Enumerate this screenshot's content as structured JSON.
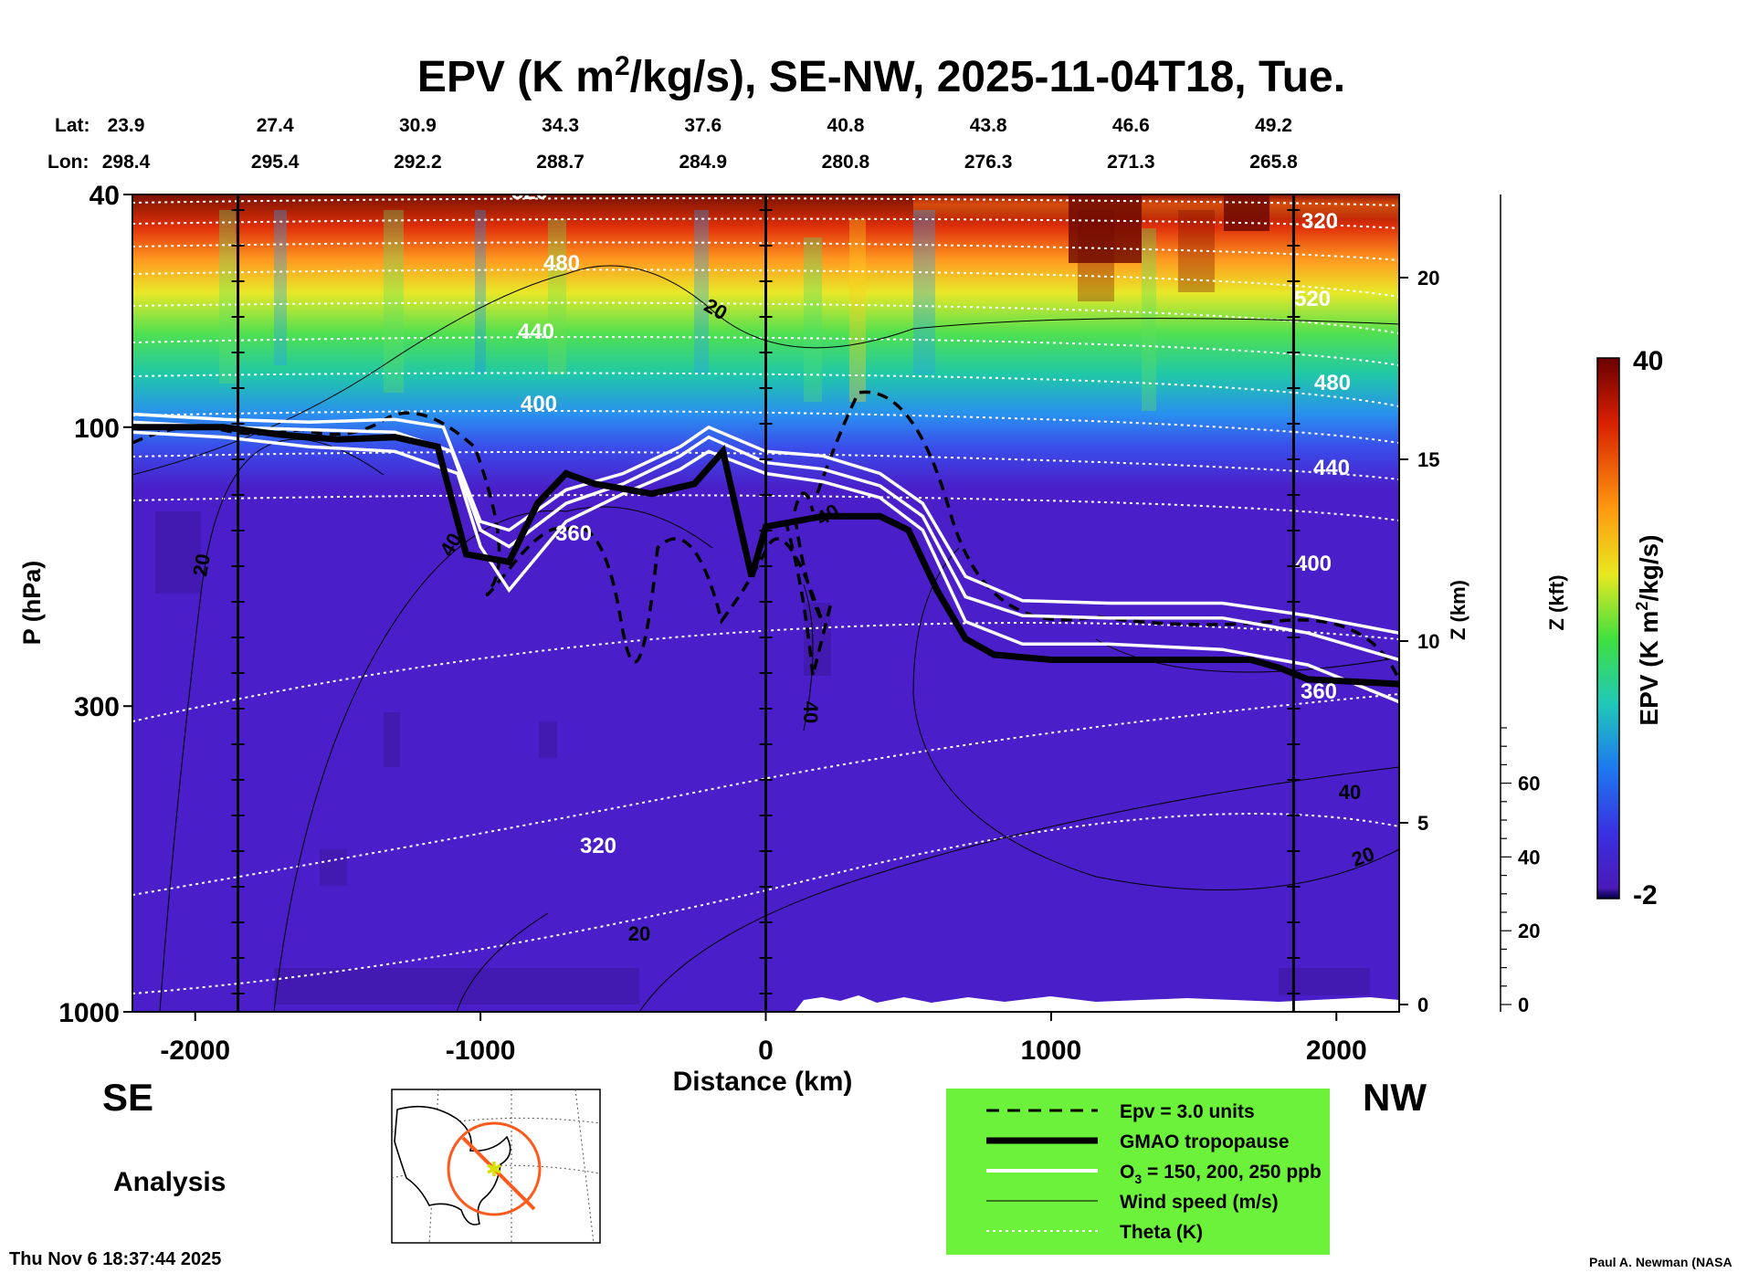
{
  "chart_data": {
    "type": "heatmap",
    "title": "EPV (K m",
    "title_sup": "2",
    "title_rest": "/kg/s), SE-NW, 2025-11-04T18, Tue.",
    "xlabel": "Distance (km)",
    "ylabel": "P (hPa)",
    "xlim": [
      -2220,
      2220
    ],
    "x_ticks": [
      "-2000",
      "-1000",
      "0",
      "1000",
      "2000"
    ],
    "x_tick_values": [
      -2000,
      -1000,
      0,
      1000,
      2000
    ],
    "y_ticks": [
      "40",
      "100",
      "300",
      "1000"
    ],
    "y_tick_values": [
      40,
      100,
      300,
      1000
    ],
    "ylim_hpa": [
      1000,
      40
    ],
    "z_km_label": "Z (km)",
    "z_km_ticks": [
      "20",
      "15",
      "10",
      "5",
      "0"
    ],
    "z_km_values": [
      20,
      15,
      10,
      5,
      0
    ],
    "z_kft_label": "Z (kft)",
    "z_kft_ticks": [
      "60",
      "40",
      "20",
      "0"
    ],
    "z_kft_values": [
      60,
      40,
      20,
      0
    ],
    "lat_label": "Lat:",
    "lon_label": "Lon:",
    "lat": [
      "23.9",
      "27.4",
      "30.9",
      "34.3",
      "37.6",
      "40.8",
      "43.8",
      "46.6",
      "49.2"
    ],
    "lon": [
      "298.4",
      "295.4",
      "292.2",
      "288.7",
      "284.9",
      "280.8",
      "276.3",
      "271.3",
      "265.8"
    ],
    "latlon_x_km": [
      -2220,
      -1720,
      -1220,
      -720,
      -220,
      280,
      780,
      1280,
      1780
    ],
    "vertical_lines_km": [
      -1850,
      0,
      1850
    ],
    "colorbar": {
      "label": "EPV (K m",
      "label_sup": "2",
      "label_rest": "/kg/s)",
      "min_label": "-2",
      "max_label": "40",
      "min": -2,
      "max": 40
    },
    "series": [
      {
        "name": "GMAO tropopause",
        "x": [
          -2220,
          -1900,
          -1700,
          -1500,
          -1300,
          -1150,
          -1050,
          -900,
          -800,
          -700,
          -600,
          -400,
          -250,
          -150,
          -50,
          0,
          100,
          200,
          400,
          500,
          600,
          700,
          800,
          1000,
          1500,
          1700,
          1800,
          1900,
          2220
        ],
        "y": [
          100,
          100,
          103,
          105,
          104,
          108,
          165,
          170,
          135,
          120,
          125,
          130,
          125,
          110,
          180,
          148,
          145,
          142,
          142,
          150,
          190,
          230,
          245,
          250,
          250,
          250,
          258,
          270,
          275
        ]
      },
      {
        "name": "O3 = 150 ppb",
        "x": [
          -2220,
          -1900,
          -1600,
          -1300,
          -1130,
          -1000,
          -900,
          -700,
          -500,
          -300,
          -200,
          0,
          200,
          400,
          550,
          700,
          900,
          1200,
          1600,
          1900,
          2220
        ],
        "y": [
          95,
          97,
          98,
          97,
          100,
          145,
          150,
          128,
          120,
          108,
          100,
          110,
          112,
          120,
          135,
          180,
          198,
          200,
          200,
          210,
          225
        ]
      },
      {
        "name": "O3 = 200 ppb",
        "x": [
          -2220,
          -1900,
          -1600,
          -1300,
          -1100,
          -1000,
          -900,
          -700,
          -500,
          -300,
          -200,
          0,
          200,
          400,
          550,
          700,
          900,
          1200,
          1600,
          1900,
          2220
        ],
        "y": [
          98,
          100,
          101,
          102,
          110,
          150,
          160,
          135,
          125,
          112,
          104,
          115,
          118,
          126,
          142,
          195,
          210,
          212,
          212,
          225,
          250
        ]
      },
      {
        "name": "O3 = 250 ppb",
        "x": [
          -2220,
          -1900,
          -1600,
          -1300,
          -1080,
          -1000,
          -900,
          -700,
          -500,
          -300,
          -200,
          0,
          200,
          400,
          550,
          700,
          900,
          1200,
          1600,
          1900,
          2220
        ],
        "y": [
          102,
          104,
          108,
          110,
          120,
          160,
          190,
          145,
          130,
          118,
          110,
          120,
          124,
          132,
          150,
          215,
          235,
          235,
          240,
          255,
          295
        ]
      }
    ],
    "theta_labels": [
      "520",
      "480",
      "440",
      "400",
      "360",
      "320",
      "520",
      "480",
      "440",
      "400",
      "360",
      "320"
    ],
    "wind_labels": [
      "20",
      "20",
      "40",
      "40",
      "40",
      "40",
      "20",
      "20"
    ],
    "legend": [
      {
        "style": "dashed",
        "label": "Epv = 3.0 units"
      },
      {
        "style": "thick",
        "label": "GMAO tropopause"
      },
      {
        "style": "white",
        "label": "O",
        "sub": "3",
        "label_rest": " = 150, 200, 250 ppb"
      },
      {
        "style": "thin",
        "label": "Wind speed (m/s)"
      },
      {
        "style": "dotted",
        "label": "Theta (K)"
      }
    ]
  },
  "labels": {
    "se": "SE",
    "nw": "NW",
    "analysis": "Analysis",
    "timestamp": "Thu Nov  6 18:37:44 2025",
    "credit": "Paul A. Newman (NASA"
  },
  "colors": {
    "legend_bg": "#6cf23a",
    "tropopause": "#000000",
    "ozone": "#ffffff",
    "map_circle": "#ff5a1e"
  }
}
